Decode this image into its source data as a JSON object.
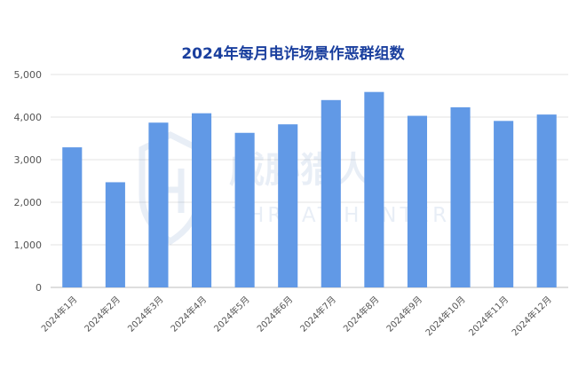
{
  "chart_data": {
    "type": "bar",
    "title": "2024年每月电诈场景作恶群组数",
    "xlabel": "",
    "ylabel": "",
    "categories": [
      "2024年1月",
      "2024年2月",
      "2024年3月",
      "2024年4月",
      "2024年5月",
      "2024年6月",
      "2024年7月",
      "2024年8月",
      "2024年9月",
      "2024年10月",
      "2024年11月",
      "2024年12月"
    ],
    "values": [
      3290,
      2470,
      3870,
      4090,
      3630,
      3830,
      4400,
      4590,
      4030,
      4230,
      3910,
      4060
    ],
    "ylim": [
      0,
      5000
    ],
    "yticks": [
      0,
      1000,
      2000,
      3000,
      4000,
      5000
    ],
    "ytick_labels": [
      "0",
      "1,000",
      "2,000",
      "3,000",
      "4,000",
      "5,000"
    ],
    "grid": true,
    "bar_color": "#6199e6",
    "title_color": "#1a3f9e"
  },
  "watermark": {
    "text_cn": "威胁猎人",
    "text_en": "THREAT HUNTER"
  }
}
